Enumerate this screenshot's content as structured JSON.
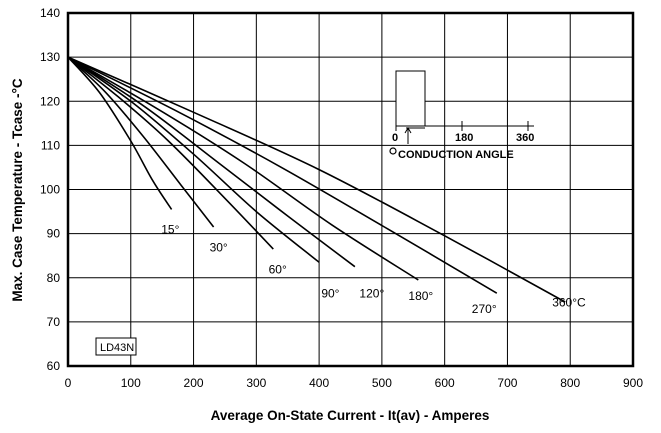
{
  "chart_data": {
    "type": "line",
    "xlabel": "Average On-State Current - It(av) - Amperes",
    "ylabel": "Max. Case Temperature - Tcase -°C",
    "xlim": [
      0,
      900
    ],
    "ylim": [
      60,
      140
    ],
    "xticks": [
      0,
      100,
      200,
      300,
      400,
      500,
      600,
      700,
      800,
      900
    ],
    "yticks": [
      60,
      70,
      80,
      90,
      100,
      110,
      120,
      130,
      140
    ],
    "grid": true,
    "series": [
      {
        "name": "15°",
        "points": [
          [
            0,
            130
          ],
          [
            50,
            122
          ],
          [
            100,
            111
          ],
          [
            135,
            102
          ],
          [
            165,
            95.5
          ]
        ],
        "label_at": [
          163,
          90
        ]
      },
      {
        "name": "30°",
        "points": [
          [
            0,
            130
          ],
          [
            60,
            122
          ],
          [
            120,
            112
          ],
          [
            180,
            101
          ],
          [
            232,
            91.5
          ]
        ],
        "label_at": [
          240,
          86
        ]
      },
      {
        "name": "60°",
        "points": [
          [
            0,
            130
          ],
          [
            80,
            121
          ],
          [
            160,
            111
          ],
          [
            250,
            98
          ],
          [
            327,
            86.5
          ]
        ],
        "label_at": [
          334,
          81
        ]
      },
      {
        "name": "90°",
        "points": [
          [
            0,
            130
          ],
          [
            100,
            120
          ],
          [
            200,
            108
          ],
          [
            300,
            95
          ],
          [
            400,
            83.5
          ]
        ],
        "label_at": [
          418,
          75.5
        ]
      },
      {
        "name": "120°",
        "points": [
          [
            0,
            130
          ],
          [
            120,
            119
          ],
          [
            240,
            106
          ],
          [
            350,
            94
          ],
          [
            457,
            82.5
          ]
        ],
        "label_at": [
          484,
          75.5
        ]
      },
      {
        "name": "180°",
        "points": [
          [
            0,
            130
          ],
          [
            140,
            118.5
          ],
          [
            280,
            106
          ],
          [
            420,
            92
          ],
          [
            558,
            79.5
          ]
        ],
        "label_at": [
          562,
          75
        ]
      },
      {
        "name": "270°",
        "points": [
          [
            0,
            130
          ],
          [
            170,
            118
          ],
          [
            340,
            105
          ],
          [
            510,
            91
          ],
          [
            683,
            76.5
          ]
        ],
        "label_at": [
          663,
          72
        ]
      },
      {
        "name": "360°C",
        "points": [
          [
            0,
            130
          ],
          [
            200,
            117.5
          ],
          [
            400,
            104.5
          ],
          [
            600,
            89.5
          ],
          [
            792,
            74.5
          ]
        ],
        "label_at": [
          798,
          73.5
        ]
      }
    ],
    "inset": {
      "label_0": "0",
      "label_180": "180",
      "label_360": "360",
      "caption": "CONDUCTION ANGLE"
    },
    "annotation": "LD43N"
  }
}
